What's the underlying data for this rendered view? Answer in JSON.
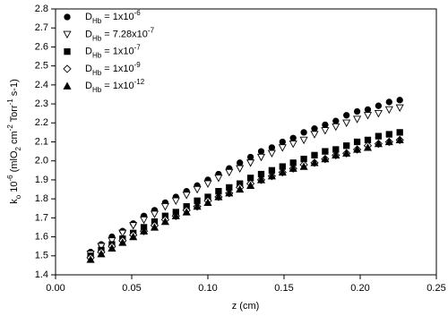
{
  "chart_data": {
    "type": "scatter",
    "x_label": "z (cm)",
    "y_label": "ko 10-6 (mlO2 cm-2 Torr-1 s-1)",
    "x": [
      0.023,
      0.03,
      0.037,
      0.044,
      0.051,
      0.058,
      0.065,
      0.072,
      0.079,
      0.086,
      0.093,
      0.1,
      0.107,
      0.114,
      0.121,
      0.128,
      0.135,
      0.142,
      0.149,
      0.156,
      0.163,
      0.17,
      0.177,
      0.184,
      0.191,
      0.198,
      0.205,
      0.212,
      0.219,
      0.226
    ],
    "series": [
      {
        "name": "DHb = 1x10-6",
        "color": "#000000",
        "marker": "circle",
        "filled": true,
        "values": [
          1.52,
          1.56,
          1.6,
          1.63,
          1.67,
          1.71,
          1.74,
          1.78,
          1.81,
          1.84,
          1.87,
          1.9,
          1.93,
          1.96,
          1.99,
          2.02,
          2.05,
          2.07,
          2.1,
          2.12,
          2.15,
          2.17,
          2.19,
          2.21,
          2.24,
          2.26,
          2.27,
          2.29,
          2.31,
          2.32
        ]
      },
      {
        "name": "DHb = 7.28x10-7",
        "color": "#000000",
        "marker": "triangle-down",
        "filled": false,
        "values": [
          1.51,
          1.55,
          1.58,
          1.62,
          1.66,
          1.69,
          1.72,
          1.76,
          1.79,
          1.82,
          1.85,
          1.88,
          1.91,
          1.94,
          1.96,
          1.99,
          2.02,
          2.04,
          2.07,
          2.09,
          2.11,
          2.14,
          2.16,
          2.18,
          2.2,
          2.22,
          2.24,
          2.25,
          2.27,
          2.28
        ]
      },
      {
        "name": "DHb = 1x10-7",
        "color": "#000000",
        "marker": "square",
        "filled": true,
        "values": [
          1.5,
          1.53,
          1.56,
          1.59,
          1.62,
          1.65,
          1.68,
          1.71,
          1.73,
          1.76,
          1.79,
          1.81,
          1.84,
          1.86,
          1.88,
          1.91,
          1.93,
          1.95,
          1.97,
          1.99,
          2.01,
          2.03,
          2.05,
          2.06,
          2.08,
          2.1,
          2.11,
          2.13,
          2.14,
          2.15
        ]
      },
      {
        "name": "DHb = 1x10-9",
        "color": "#000000",
        "marker": "diamond",
        "filled": false,
        "values": [
          1.49,
          1.52,
          1.55,
          1.58,
          1.61,
          1.63,
          1.66,
          1.69,
          1.71,
          1.74,
          1.76,
          1.79,
          1.81,
          1.83,
          1.86,
          1.88,
          1.9,
          1.92,
          1.94,
          1.96,
          1.98,
          1.99,
          2.01,
          2.03,
          2.04,
          2.06,
          2.08,
          2.09,
          2.1,
          2.11
        ]
      },
      {
        "name": "DHb = 1x10-12",
        "color": "#000000",
        "marker": "triangle",
        "filled": true,
        "values": [
          1.48,
          1.51,
          1.54,
          1.57,
          1.6,
          1.63,
          1.65,
          1.68,
          1.71,
          1.73,
          1.76,
          1.78,
          1.81,
          1.83,
          1.85,
          1.87,
          1.9,
          1.92,
          1.94,
          1.96,
          1.97,
          1.99,
          2.01,
          2.03,
          2.04,
          2.06,
          2.07,
          2.09,
          2.1,
          2.11
        ]
      }
    ],
    "xlim": [
      0,
      0.25
    ],
    "xticks": [
      {
        "value": 0,
        "label": "0.00"
      },
      {
        "value": 0.05,
        "label": "0.05"
      },
      {
        "value": 0.1,
        "label": "0.10"
      },
      {
        "value": 0.15,
        "label": "0.15"
      },
      {
        "value": 0.2,
        "label": "0.20"
      },
      {
        "value": 0.25,
        "label": "0.25"
      }
    ],
    "ylim": [
      1.4,
      2.8
    ],
    "yticks": [
      1.4,
      1.5,
      1.6,
      1.7,
      1.8,
      1.9,
      {
        "value": 2,
        "label": "2.0"
      },
      2.1,
      2.2,
      2.3,
      2.4,
      2.5,
      2.6,
      2.7,
      2.8
    ],
    "legend": "upper left",
    "grid": false
  }
}
